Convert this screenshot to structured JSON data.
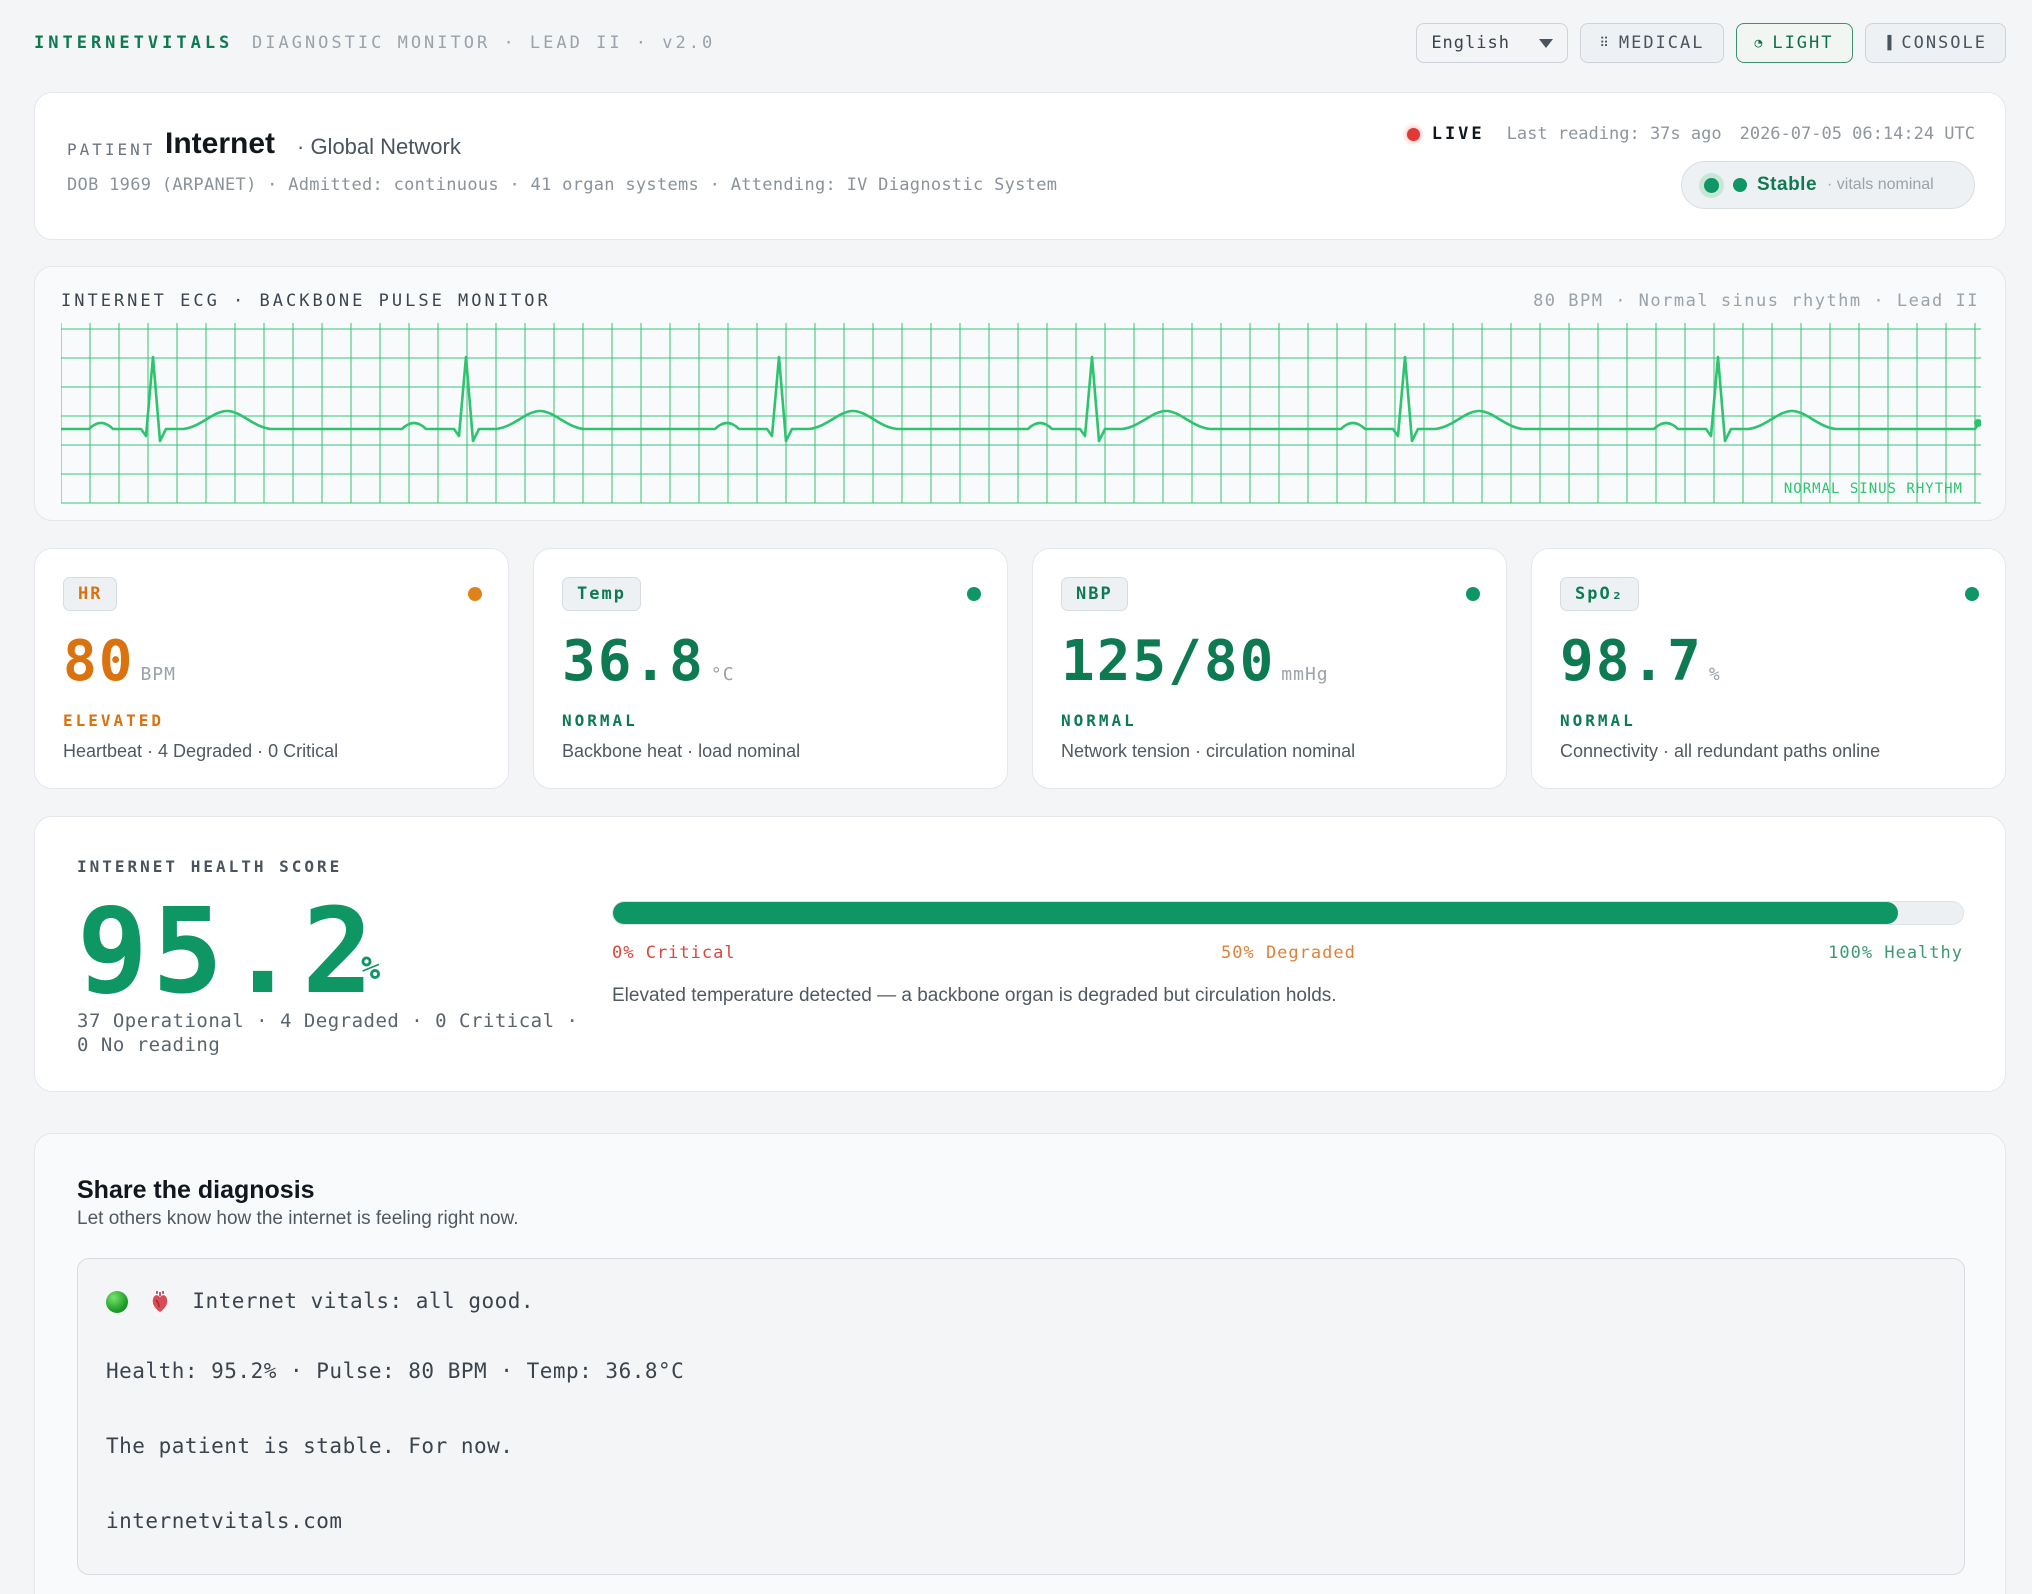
{
  "topbar": {
    "brand": "INTERNETVITALS",
    "subbrand": "DIAGNOSTIC MONITOR · LEAD II · v2.0",
    "language": "English",
    "buttons": {
      "medical": "MEDICAL",
      "light": "LIGHT",
      "console": "CONSOLE"
    },
    "active_mode": "light"
  },
  "patient": {
    "label": "PATIENT",
    "name": "Internet",
    "subtitle": "· Global Network",
    "meta": "DOB 1969 (ARPANET) · Admitted: continuous · 41 organ systems · Attending: IV Diagnostic System",
    "live": "LIVE",
    "last_reading": "Last reading: 37s ago",
    "timestamp": "2026-07-05 06:14:24 UTC",
    "status": "Stable",
    "status_note": "· vitals nominal"
  },
  "ecg": {
    "title": "INTERNET ECG · BACKBONE PULSE MONITOR",
    "summary": "80 BPM · Normal sinus rhythm · Lead II",
    "rhythm_tag": "NORMAL SINUS RHYTHM",
    "beats_shown": 6
  },
  "vitals": [
    {
      "code": "HR",
      "value": "80",
      "unit": "BPM",
      "state": "ELEVATED",
      "desc": "Heartbeat · 4 Degraded · 0 Critical",
      "color": "#d9720f"
    },
    {
      "code": "Temp",
      "value": "36.8",
      "unit": "°C",
      "state": "NORMAL",
      "desc": "Backbone heat · load nominal",
      "color": "#0e7a52"
    },
    {
      "code": "NBP",
      "value": "125/80",
      "unit": "mmHg",
      "state": "NORMAL",
      "desc": "Network tension · circulation nominal",
      "color": "#0e7a52"
    },
    {
      "code": "SpO₂",
      "value": "98.7",
      "unit": "%",
      "state": "NORMAL",
      "desc": "Connectivity · all redundant paths online",
      "color": "#0e7a52"
    }
  ],
  "health": {
    "label": "INTERNET HEALTH SCORE",
    "score": "95.2",
    "pct_sign": "%",
    "score_fraction": 0.952,
    "counts": "37 Operational · 4 Degraded · 0 Critical · 0 No reading",
    "scale": {
      "critical": "0% Critical",
      "degraded": "50% Degraded",
      "healthy": "100% Healthy"
    },
    "note": "Elevated temperature detected — a backbone organ is degraded but circulation holds."
  },
  "share": {
    "title": "Share the diagnosis",
    "subtitle": "Let others know how the internet is feeling right now.",
    "lines": [
      "Internet vitals: all good.",
      "Health: 95.2% · Pulse: 80 BPM · Temp: 36.8°C",
      "The patient is stable. For now.",
      "internetvitals.com"
    ]
  },
  "colors": {
    "accent": "#0e9664",
    "ecg_trace": "#2ec36f",
    "elevated": "#d9720f",
    "critical": "#d9473c",
    "live": "#e33935"
  }
}
